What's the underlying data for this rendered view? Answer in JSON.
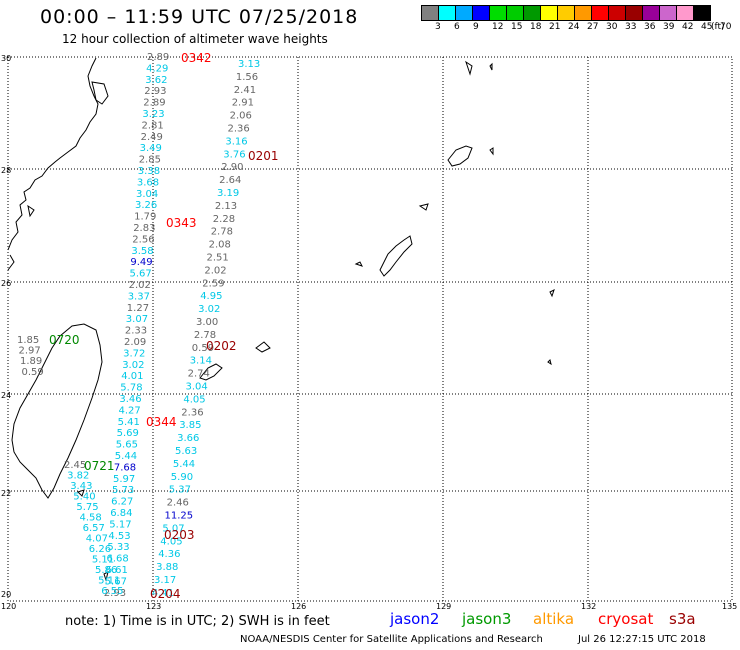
{
  "header": {
    "title": "00:00 – 11:59 UTC 07/25/2018",
    "subtitle": "12 hour collection of altimeter wave heights"
  },
  "legend": {
    "colors": [
      "#808080",
      "#00ffff",
      "#00aaff",
      "#0000ff",
      "#00dd00",
      "#00cc00",
      "#009900",
      "#ffff00",
      "#ffcc00",
      "#ff9900",
      "#ff0000",
      "#cc0000",
      "#990000",
      "#990099",
      "#cc66cc",
      "#ff99cc",
      "#000000"
    ],
    "labels": [
      "3",
      "6",
      "9",
      "12",
      "15",
      "18",
      "21",
      "24",
      "27",
      "30",
      "33",
      "36",
      "39",
      "42",
      "45",
      "70",
      "(ft)"
    ]
  },
  "axes": {
    "lat_labels": [
      "30",
      "28",
      "26",
      "24",
      "22",
      "20"
    ],
    "lon_labels": [
      "120",
      "123",
      "126",
      "129",
      "132",
      "135"
    ]
  },
  "colors": {
    "gray": "#666666",
    "cyan": "#00c8e6",
    "blue": "#0000cc",
    "green": "#008800",
    "dark_red": "#990000",
    "red": "#ff0000"
  },
  "tracks": {
    "track_a": {
      "values": [
        "2.89",
        "4.29",
        "3.62",
        "2.93",
        "2.89",
        "3.23",
        "2.81",
        "2.49",
        "3.49",
        "2.85",
        "3.38",
        "3.68",
        "3.04",
        "3.26",
        "1.79",
        "2.83",
        "2.56",
        "3.58",
        "9.49",
        "5.67",
        "2.02",
        "3.37",
        "1.27",
        "3.07",
        "2.33",
        "2.09",
        "3.72",
        "3.02",
        "4.01",
        "5.78",
        "3.46",
        "4.27",
        "5.41",
        "5.69",
        "5.65",
        "5.44",
        "7.68",
        "5.97",
        "5.73",
        "6.27",
        "6.84",
        "5.17",
        "4.53",
        "5.33",
        "6.68",
        "6.61",
        "5.67",
        "2.93"
      ],
      "colors": [
        "gray",
        "cyan",
        "cyan",
        "gray",
        "gray",
        "cyan",
        "gray",
        "gray",
        "cyan",
        "gray",
        "cyan",
        "cyan",
        "cyan",
        "cyan",
        "gray",
        "gray",
        "gray",
        "cyan",
        "blue",
        "cyan",
        "gray",
        "cyan",
        "gray",
        "cyan",
        "gray",
        "gray",
        "cyan",
        "cyan",
        "cyan",
        "cyan",
        "cyan",
        "cyan",
        "cyan",
        "cyan",
        "cyan",
        "cyan",
        "blue",
        "cyan",
        "cyan",
        "cyan",
        "cyan",
        "cyan",
        "cyan",
        "cyan",
        "cyan",
        "cyan",
        "cyan",
        "gray"
      ]
    },
    "track_b": {
      "values": [
        "3.13",
        "1.56",
        "2.41",
        "2.91",
        "2.06",
        "2.36",
        "3.16",
        "3.76",
        "2.90",
        "2.64",
        "3.19",
        "2.13",
        "2.28",
        "2.78",
        "2.08",
        "2.51",
        "2.02",
        "2.59",
        "4.95",
        "3.02",
        "3.00",
        "2.78",
        "0.59",
        "3.14",
        "2.74",
        "3.04",
        "4.05",
        "2.36",
        "3.85",
        "3.66",
        "5.63",
        "5.44",
        "5.90",
        "5.37",
        "2.46",
        "11.25",
        "5.07",
        "4.05",
        "4.36",
        "3.88",
        "3.17",
        "4.41"
      ],
      "colors": [
        "cyan",
        "gray",
        "gray",
        "gray",
        "gray",
        "gray",
        "cyan",
        "cyan",
        "gray",
        "gray",
        "cyan",
        "gray",
        "gray",
        "gray",
        "gray",
        "gray",
        "gray",
        "gray",
        "cyan",
        "cyan",
        "gray",
        "gray",
        "gray",
        "cyan",
        "gray",
        "cyan",
        "cyan",
        "gray",
        "cyan",
        "cyan",
        "cyan",
        "cyan",
        "cyan",
        "cyan",
        "gray",
        "blue",
        "cyan",
        "cyan",
        "cyan",
        "cyan",
        "cyan",
        "cyan"
      ]
    },
    "track_c": {
      "values": [
        "1.85",
        "2.97",
        "1.89",
        "0.59"
      ]
    },
    "track_d": {
      "values": [
        "2.45",
        "3.82",
        "3.43",
        "5.40",
        "5.75",
        "4.58",
        "6.57",
        "4.07",
        "6.26",
        "5.11",
        "5.86",
        "5.11",
        "6.55"
      ],
      "colors": [
        "gray",
        "cyan",
        "cyan",
        "cyan",
        "cyan",
        "cyan",
        "cyan",
        "cyan",
        "cyan",
        "cyan",
        "cyan",
        "cyan",
        "cyan"
      ]
    }
  },
  "pass_labels": [
    {
      "text": "0342",
      "color": "red"
    },
    {
      "text": "0201",
      "color": "dark_red"
    },
    {
      "text": "0343",
      "color": "red"
    },
    {
      "text": "0720",
      "color": "green"
    },
    {
      "text": "0202",
      "color": "dark_red"
    },
    {
      "text": "0344",
      "color": "red"
    },
    {
      "text": "0721",
      "color": "green"
    },
    {
      "text": "0203",
      "color": "dark_red"
    },
    {
      "text": "0204",
      "color": "dark_red"
    }
  ],
  "footer": {
    "note": "note:  1) Time is in UTC;  2) SWH is in feet",
    "satellites": [
      {
        "name": "jason2",
        "color": "#0000ff"
      },
      {
        "name": "jason3",
        "color": "#009900"
      },
      {
        "name": "altika",
        "color": "#ff9900"
      },
      {
        "name": "cryosat",
        "color": "#ff0000"
      },
      {
        "name": "s3a",
        "color": "#990000"
      }
    ],
    "credit": "NOAA/NESDIS Center for Satellite Applications and Research",
    "timestamp": "Jul 26 12:27:15 UTC 2018"
  }
}
